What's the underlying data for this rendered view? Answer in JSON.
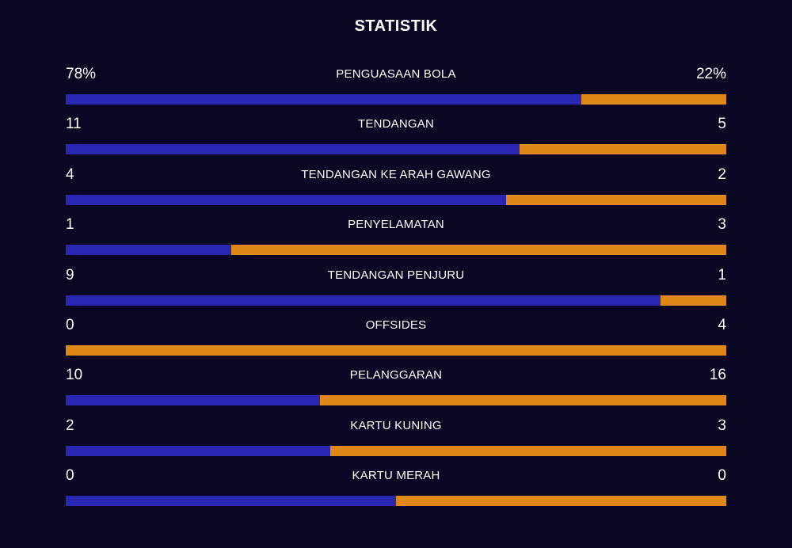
{
  "title": "STATISTIK",
  "colors": {
    "background": "#080622",
    "home": "#2926b4",
    "away": "#df8818",
    "text": "#ffffff"
  },
  "stats": [
    {
      "label": "PENGUASAAN BOLA",
      "home": "78%",
      "away": "22%",
      "home_share": 0.78
    },
    {
      "label": "TENDANGAN",
      "home": "11",
      "away": "5",
      "home_share": 0.6875
    },
    {
      "label": "TENDANGAN KE ARAH GAWANG",
      "home": "4",
      "away": "2",
      "home_share": 0.6667
    },
    {
      "label": "PENYELAMATAN",
      "home": "1",
      "away": "3",
      "home_share": 0.25
    },
    {
      "label": "TENDANGAN PENJURU",
      "home": "9",
      "away": "1",
      "home_share": 0.9
    },
    {
      "label": "OFFSIDES",
      "home": "0",
      "away": "4",
      "home_share": 0.0
    },
    {
      "label": "PELANGGARAN",
      "home": "10",
      "away": "16",
      "home_share": 0.3846
    },
    {
      "label": "KARTU KUNING",
      "home": "2",
      "away": "3",
      "home_share": 0.4
    },
    {
      "label": "KARTU MERAH",
      "home": "0",
      "away": "0",
      "home_share": 0.5
    }
  ]
}
